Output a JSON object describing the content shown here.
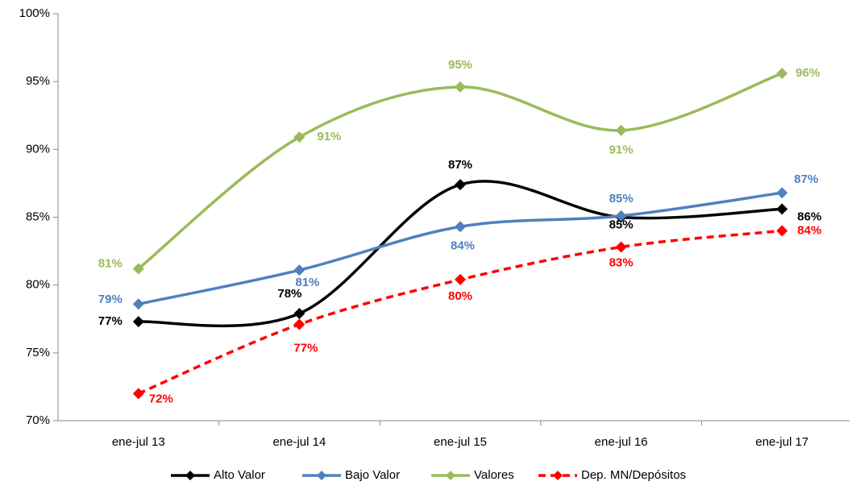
{
  "chart_data": {
    "type": "line",
    "categories": [
      "ene-jul 13",
      "ene-jul 14",
      "ene-jul 15",
      "ene-jul 16",
      "ene-jul 17"
    ],
    "series": [
      {
        "name": "Alto Valor",
        "color": "#000000",
        "dashed": false,
        "values": [
          77.3,
          77.9,
          87.4,
          85.0,
          85.6
        ],
        "value_labels": [
          "77%",
          "78%",
          "87%",
          "85%",
          "86%"
        ]
      },
      {
        "name": "Bajo Valor",
        "color": "#4f81bd",
        "dashed": false,
        "values": [
          78.6,
          81.1,
          84.3,
          85.1,
          86.8
        ],
        "value_labels": [
          "79%",
          "81%",
          "84%",
          "85%",
          "87%"
        ]
      },
      {
        "name": "Valores",
        "color": "#9bbb59",
        "dashed": false,
        "values": [
          81.2,
          90.9,
          94.6,
          91.4,
          95.6
        ],
        "value_labels": [
          "81%",
          "91%",
          "95%",
          "91%",
          "96%"
        ]
      },
      {
        "name": "Dep. MN/Depósitos",
        "color": "#ff0000",
        "dashed": true,
        "values": [
          72.0,
          77.1,
          80.4,
          82.8,
          84.0
        ],
        "value_labels": [
          "72%",
          "77%",
          "80%",
          "83%",
          "84%"
        ]
      }
    ],
    "ylim": [
      70,
      100
    ],
    "yticks": [
      {
        "value": 70,
        "label": "70%"
      },
      {
        "value": 75,
        "label": "75%"
      },
      {
        "value": 80,
        "label": "80%"
      },
      {
        "value": 85,
        "label": "85%"
      },
      {
        "value": 90,
        "label": "90%"
      },
      {
        "value": 95,
        "label": "95%"
      },
      {
        "value": 100,
        "label": "100%"
      }
    ],
    "grid": false,
    "legend": "bottom"
  }
}
